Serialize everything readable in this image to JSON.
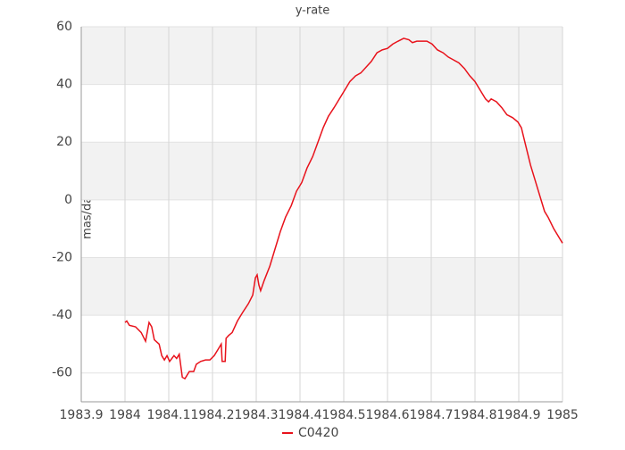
{
  "chart_data": {
    "type": "line",
    "title": "y-rate",
    "y_label": "mas/day",
    "x": [
      1984.0,
      1984.004,
      1984.01,
      1984.024,
      1984.037,
      1984.047,
      1984.055,
      1984.061,
      1984.067,
      1984.078,
      1984.084,
      1984.09,
      1984.096,
      1984.102,
      1984.112,
      1984.118,
      1984.124,
      1984.131,
      1984.137,
      1984.147,
      1984.157,
      1984.163,
      1984.173,
      1984.184,
      1984.194,
      1984.204,
      1984.212,
      1984.22,
      1984.222,
      1984.229,
      1984.231,
      1984.237,
      1984.245,
      1984.257,
      1984.269,
      1984.282,
      1984.292,
      1984.298,
      1984.302,
      1984.306,
      1984.31,
      1984.318,
      1984.331,
      1984.343,
      1984.355,
      1984.367,
      1984.38,
      1984.392,
      1984.404,
      1984.416,
      1984.429,
      1984.441,
      1984.453,
      1984.465,
      1984.478,
      1984.49,
      1984.502,
      1984.514,
      1984.527,
      1984.539,
      1984.551,
      1984.563,
      1984.576,
      1984.588,
      1984.6,
      1984.612,
      1984.624,
      1984.637,
      1984.649,
      1984.657,
      1984.667,
      1984.68,
      1984.69,
      1984.702,
      1984.714,
      1984.727,
      1984.739,
      1984.751,
      1984.763,
      1984.776,
      1984.788,
      1984.8,
      1984.812,
      1984.824,
      1984.831,
      1984.837,
      1984.849,
      1984.861,
      1984.873,
      1984.886,
      1984.898,
      1984.906,
      1984.914,
      1984.927,
      1984.939,
      1984.951,
      1984.959,
      1984.967,
      1984.98,
      1984.992,
      1985.0
    ],
    "series": [
      {
        "name": "C0420",
        "color": "#e8121b",
        "values": [
          -42.5,
          -42,
          -43.5,
          -44,
          -46,
          -49,
          -42.5,
          -44,
          -48.5,
          -50,
          -54,
          -55.5,
          -54,
          -56,
          -54,
          -55,
          -53.5,
          -61.5,
          -62,
          -59.5,
          -59.5,
          -57,
          -56,
          -55.5,
          -55.5,
          -54,
          -52,
          -50,
          -56,
          -56,
          -48,
          -47,
          -46,
          -42,
          -39,
          -36,
          -33,
          -27,
          -26,
          -29.5,
          -31.5,
          -28,
          -23,
          -17,
          -11,
          -6,
          -2,
          3,
          6,
          11,
          15,
          20,
          25,
          29,
          32,
          35,
          38,
          41,
          43,
          44,
          46,
          48,
          51,
          52,
          52.5,
          54,
          55,
          56,
          55.5,
          54.5,
          55,
          55,
          55,
          54,
          52,
          51,
          49.5,
          48.5,
          47.5,
          45.5,
          43,
          41,
          38,
          35,
          34,
          35,
          34,
          32,
          29.5,
          28.5,
          27,
          25,
          20,
          12,
          6,
          0,
          -4,
          -6,
          -10,
          -13,
          -15
        ]
      }
    ],
    "xlim": [
      1983.9,
      1985
    ],
    "xticks": [
      1983.9,
      1984,
      1984.1,
      1984.2,
      1984.3,
      1984.4,
      1984.5,
      1984.6,
      1984.7,
      1984.8,
      1984.9,
      1985
    ],
    "ylim": [
      -70,
      60
    ],
    "yticks": [
      -60,
      -40,
      -20,
      0,
      20,
      40,
      60
    ],
    "grid": true,
    "legend": "bottom"
  }
}
